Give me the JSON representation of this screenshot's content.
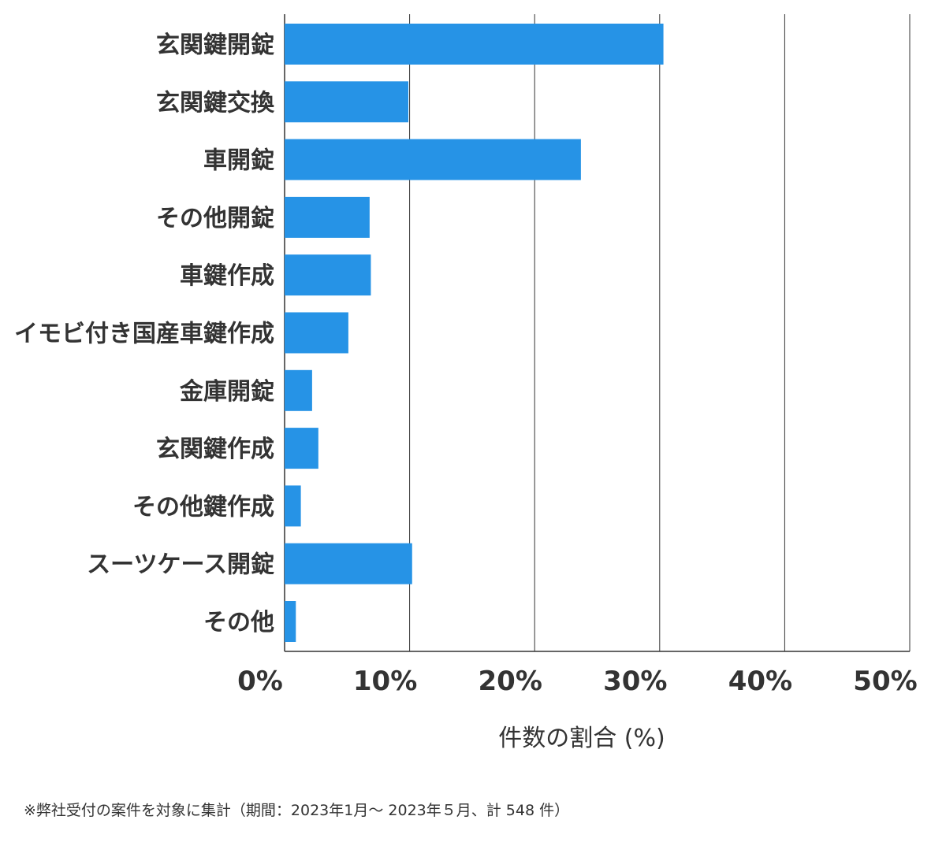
{
  "chart_data": {
    "type": "bar",
    "orientation": "horizontal",
    "categories": [
      "玄関鍵開錠",
      "玄関鍵交換",
      "車開錠",
      "その他開錠",
      "車鍵作成",
      "イモビ付き国産車鍵作成",
      "金庫開錠",
      "玄関鍵作成",
      "その他鍵作成",
      "スーツケース開錠",
      "その他"
    ],
    "values": [
      30.3,
      9.9,
      23.7,
      6.8,
      6.9,
      5.1,
      2.2,
      2.7,
      1.3,
      10.2,
      0.9
    ],
    "xlabel": "件数の割合 (%)",
    "xlim": [
      0,
      50
    ],
    "xticks": [
      0,
      10,
      20,
      30,
      40,
      50
    ],
    "xtick_labels": [
      "0%",
      "10%",
      "20%",
      "30%",
      "40%",
      "50%"
    ],
    "grid": true,
    "bar_color": "#2693e6",
    "grid_color": "#333333"
  },
  "footnote": "※弊社受付の案件を対象に集計（期間：2023年1月～ 2023年５月、計 548 件）"
}
